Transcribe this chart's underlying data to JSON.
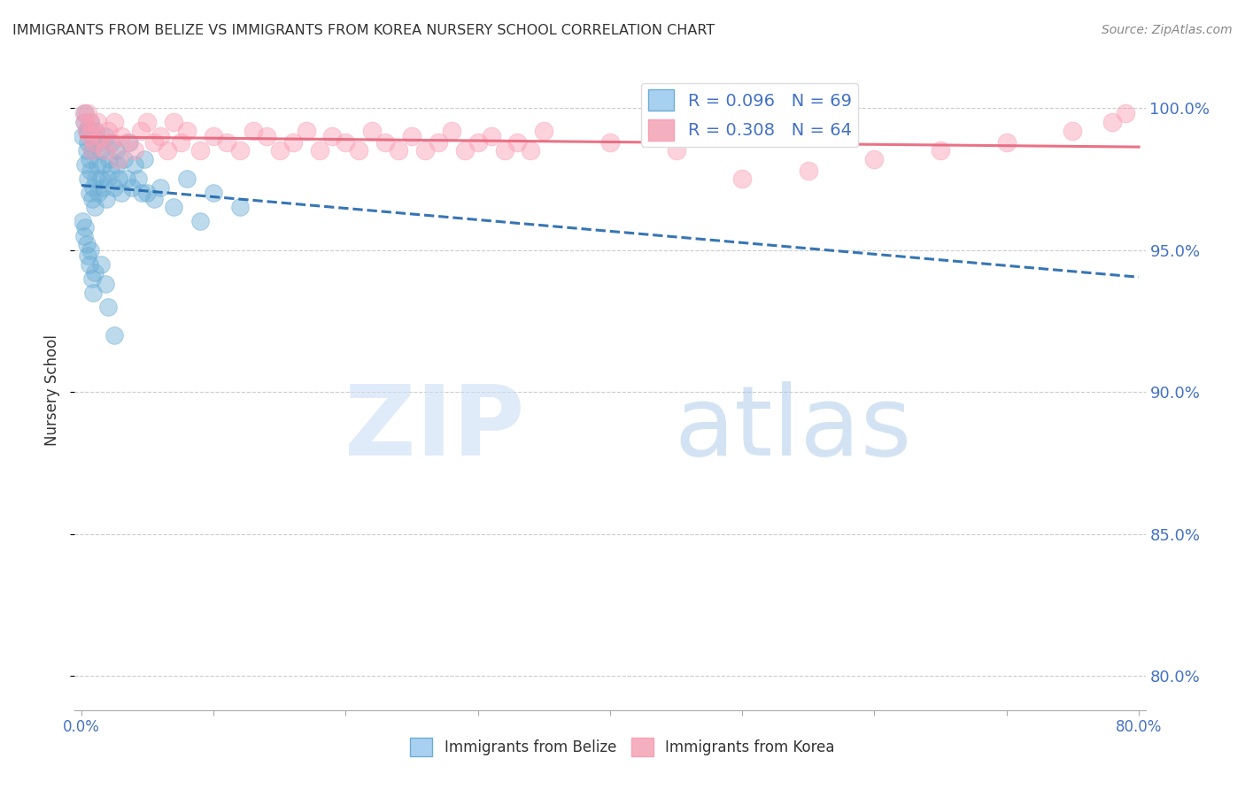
{
  "title": "IMMIGRANTS FROM BELIZE VS IMMIGRANTS FROM KOREA NURSERY SCHOOL CORRELATION CHART",
  "source": "Source: ZipAtlas.com",
  "ylabel_label": "Nursery School",
  "belize_color": "#6baed6",
  "korea_color": "#fa9fb5",
  "belize_line_color": "#2166ac",
  "korea_line_color": "#e8637a",
  "belize_R": 0.096,
  "belize_N": 69,
  "korea_R": 0.308,
  "korea_N": 64,
  "xlim": [
    -0.005,
    0.805
  ],
  "ylim": [
    0.788,
    1.013
  ],
  "yticks": [
    0.8,
    0.85,
    0.9,
    0.95,
    1.0
  ],
  "xticks": [
    0.0,
    0.1,
    0.2,
    0.3,
    0.4,
    0.5,
    0.6,
    0.7,
    0.8
  ],
  "watermark_zip": "ZIP",
  "watermark_atlas": "atlas",
  "background_color": "#ffffff",
  "grid_color": "#cccccc",
  "title_color": "#333333",
  "tick_label_color": "#4472c4",
  "legend_R1": "R = 0.096",
  "legend_N1": "N = 69",
  "legend_R2": "R = 0.308",
  "legend_N2": "N = 64",
  "belize_x": [
    0.001,
    0.002,
    0.003,
    0.003,
    0.004,
    0.004,
    0.005,
    0.005,
    0.005,
    0.006,
    0.006,
    0.007,
    0.007,
    0.008,
    0.008,
    0.009,
    0.009,
    0.01,
    0.01,
    0.011,
    0.011,
    0.012,
    0.013,
    0.014,
    0.015,
    0.015,
    0.016,
    0.017,
    0.018,
    0.019,
    0.02,
    0.021,
    0.022,
    0.023,
    0.025,
    0.026,
    0.027,
    0.028,
    0.03,
    0.032,
    0.034,
    0.036,
    0.038,
    0.04,
    0.043,
    0.046,
    0.048,
    0.001,
    0.002,
    0.003,
    0.004,
    0.005,
    0.006,
    0.007,
    0.008,
    0.009,
    0.01,
    0.05,
    0.055,
    0.06,
    0.07,
    0.08,
    0.09,
    0.1,
    0.12,
    0.015,
    0.018,
    0.02,
    0.025
  ],
  "belize_y": [
    0.99,
    0.995,
    0.98,
    0.998,
    0.985,
    0.992,
    0.975,
    0.988,
    0.993,
    0.97,
    0.982,
    0.978,
    0.995,
    0.968,
    0.985,
    0.972,
    0.99,
    0.965,
    0.988,
    0.975,
    0.992,
    0.98,
    0.97,
    0.985,
    0.975,
    0.988,
    0.98,
    0.972,
    0.99,
    0.968,
    0.975,
    0.982,
    0.978,
    0.988,
    0.972,
    0.985,
    0.98,
    0.975,
    0.97,
    0.982,
    0.975,
    0.988,
    0.972,
    0.98,
    0.975,
    0.97,
    0.982,
    0.96,
    0.955,
    0.958,
    0.952,
    0.948,
    0.945,
    0.95,
    0.94,
    0.935,
    0.942,
    0.97,
    0.968,
    0.972,
    0.965,
    0.975,
    0.96,
    0.97,
    0.965,
    0.945,
    0.938,
    0.93,
    0.92
  ],
  "korea_x": [
    0.002,
    0.003,
    0.004,
    0.005,
    0.006,
    0.007,
    0.008,
    0.009,
    0.01,
    0.012,
    0.015,
    0.018,
    0.02,
    0.022,
    0.025,
    0.028,
    0.03,
    0.035,
    0.04,
    0.045,
    0.05,
    0.055,
    0.06,
    0.065,
    0.07,
    0.075,
    0.08,
    0.09,
    0.1,
    0.11,
    0.12,
    0.13,
    0.14,
    0.15,
    0.16,
    0.17,
    0.18,
    0.19,
    0.2,
    0.21,
    0.22,
    0.23,
    0.24,
    0.25,
    0.26,
    0.27,
    0.28,
    0.29,
    0.3,
    0.31,
    0.32,
    0.33,
    0.34,
    0.35,
    0.4,
    0.45,
    0.5,
    0.55,
    0.6,
    0.65,
    0.7,
    0.75,
    0.78,
    0.79
  ],
  "korea_y": [
    0.998,
    0.995,
    0.992,
    0.998,
    0.99,
    0.995,
    0.985,
    0.992,
    0.988,
    0.995,
    0.99,
    0.985,
    0.992,
    0.988,
    0.995,
    0.982,
    0.99,
    0.988,
    0.985,
    0.992,
    0.995,
    0.988,
    0.99,
    0.985,
    0.995,
    0.988,
    0.992,
    0.985,
    0.99,
    0.988,
    0.985,
    0.992,
    0.99,
    0.985,
    0.988,
    0.992,
    0.985,
    0.99,
    0.988,
    0.985,
    0.992,
    0.988,
    0.985,
    0.99,
    0.985,
    0.988,
    0.992,
    0.985,
    0.988,
    0.99,
    0.985,
    0.988,
    0.985,
    0.992,
    0.988,
    0.985,
    0.975,
    0.978,
    0.982,
    0.985,
    0.988,
    0.992,
    0.995,
    0.998
  ]
}
